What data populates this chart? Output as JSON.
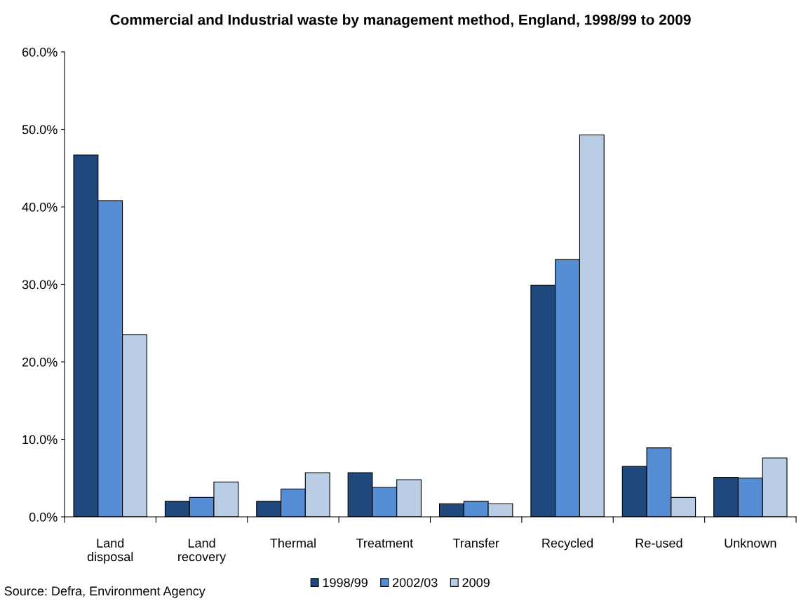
{
  "chart_data": {
    "type": "bar",
    "title": "Commercial and Industrial waste by management method, England, 1998/99 to 2009",
    "categories": [
      "Land\ndisposal",
      "Land\nrecovery",
      "Thermal",
      "Treatment",
      "Transfer",
      "Recycled",
      "Re-used",
      "Unknown"
    ],
    "series": [
      {
        "name": "1998/99",
        "color": "#1f497d",
        "values": [
          46.7,
          2.0,
          2.0,
          5.7,
          1.7,
          29.9,
          6.5,
          5.1
        ]
      },
      {
        "name": "2002/03",
        "color": "#558ed5",
        "values": [
          40.8,
          2.5,
          3.6,
          3.8,
          2.0,
          33.2,
          8.9,
          5.0
        ]
      },
      {
        "name": "2009",
        "color": "#b9cde5",
        "values": [
          23.5,
          4.5,
          5.7,
          4.8,
          1.7,
          49.3,
          2.5,
          7.6
        ]
      }
    ],
    "ylim": [
      0,
      60
    ],
    "yticks": [
      {
        "value": 0,
        "label": "0.0%"
      },
      {
        "value": 10,
        "label": "10.0%"
      },
      {
        "value": 20,
        "label": "20.0%"
      },
      {
        "value": 30,
        "label": "30.0%"
      },
      {
        "value": 40,
        "label": "40.0%"
      },
      {
        "value": 50,
        "label": "50.0%"
      },
      {
        "value": 60,
        "label": "60.0%"
      }
    ],
    "legend": "bottom",
    "annotations": [
      "Source: Defra, Environment Agency"
    ]
  }
}
